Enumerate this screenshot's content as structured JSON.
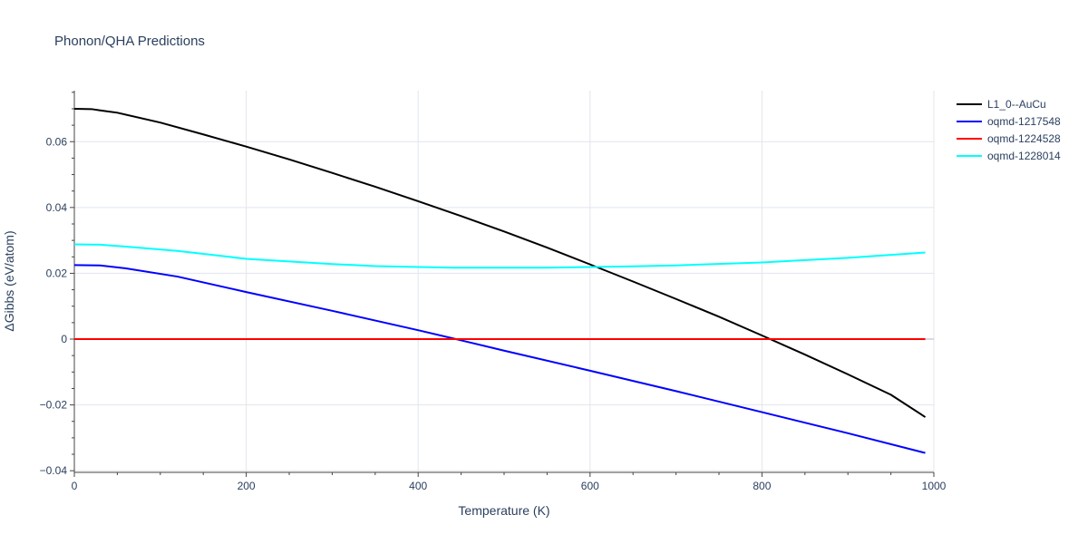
{
  "chart_data": {
    "type": "line",
    "title": "Phonon/QHA Predictions",
    "xlabel": "Temperature (K)",
    "ylabel": "ΔGibbs (eV/atom)",
    "xlim": [
      0,
      1000
    ],
    "ylim": [
      -0.0405,
      0.0755
    ],
    "xticks": [
      0,
      200,
      400,
      600,
      800,
      1000
    ],
    "xtick_labels": [
      "0",
      "200",
      "400",
      "600",
      "800",
      "1000"
    ],
    "yticks": [
      -0.04,
      -0.02,
      0,
      0.02,
      0.04,
      0.06
    ],
    "ytick_labels": [
      "−0.04",
      "−0.02",
      "0",
      "0.02",
      "0.04",
      "0.06"
    ],
    "grid": true,
    "legend_position": "top-right",
    "series": [
      {
        "name": "L1_0--AuCu",
        "color": "#000000",
        "x": [
          0,
          20,
          30,
          50,
          100,
          150,
          200,
          250,
          300,
          350,
          400,
          450,
          500,
          550,
          600,
          650,
          700,
          750,
          800,
          850,
          900,
          950,
          990
        ],
        "y": [
          0.07,
          0.0699,
          0.0695,
          0.0688,
          0.0658,
          0.0622,
          0.0585,
          0.0546,
          0.0505,
          0.0463,
          0.0419,
          0.0374,
          0.0327,
          0.0278,
          0.0227,
          0.0175,
          0.0122,
          0.0068,
          0.0011,
          -0.0047,
          -0.0107,
          -0.0169,
          -0.0237
        ]
      },
      {
        "name": "oqmd-1217548",
        "color": "#0000ff",
        "x": [
          0,
          30,
          60,
          120,
          200,
          300,
          400,
          444,
          500,
          600,
          700,
          800,
          900,
          990
        ],
        "y": [
          0.0225,
          0.0224,
          0.0215,
          0.019,
          0.0143,
          0.0086,
          0.0027,
          0.0,
          -0.0035,
          -0.0096,
          -0.0158,
          -0.0222,
          -0.0286,
          -0.0346
        ]
      },
      {
        "name": "oqmd-1224528",
        "color": "#ff0000",
        "x": [
          0,
          990
        ],
        "y": [
          0.0,
          0.0
        ]
      },
      {
        "name": "oqmd-1228014",
        "color": "#00ffff",
        "x": [
          0,
          30,
          60,
          120,
          200,
          300,
          350,
          440,
          500,
          550,
          600,
          650,
          700,
          800,
          900,
          990
        ],
        "y": [
          0.0288,
          0.0287,
          0.0281,
          0.0268,
          0.0244,
          0.0228,
          0.0222,
          0.0217,
          0.0217,
          0.0217,
          0.0219,
          0.0221,
          0.0224,
          0.0233,
          0.0247,
          0.0263
        ]
      }
    ]
  }
}
